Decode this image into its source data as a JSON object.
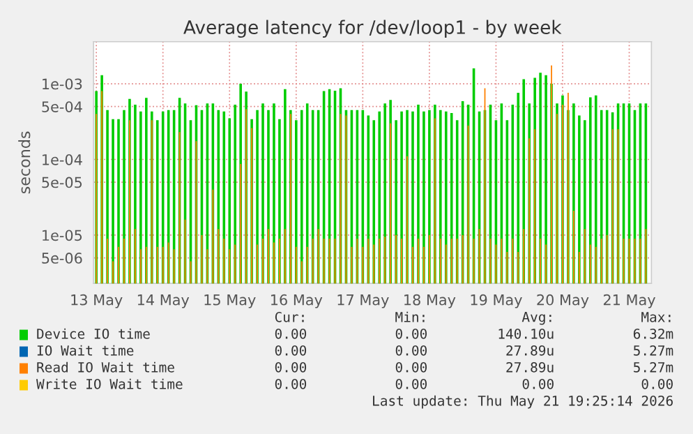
{
  "chart_data": {
    "type": "bar",
    "title": "Average latency for /dev/loop1 - by week",
    "ylabel": "seconds",
    "x": [
      "2026-05-13T00:00",
      "2026-05-13T02:00",
      "2026-05-13T04:00",
      "2026-05-13T06:00",
      "2026-05-13T08:00",
      "2026-05-13T10:00",
      "2026-05-13T12:00",
      "2026-05-13T14:00",
      "2026-05-13T16:00",
      "2026-05-13T18:00",
      "2026-05-13T20:00",
      "2026-05-13T22:00",
      "2026-05-14T00:00",
      "2026-05-14T02:00",
      "2026-05-14T04:00",
      "2026-05-14T06:00",
      "2026-05-14T08:00",
      "2026-05-14T10:00",
      "2026-05-14T12:00",
      "2026-05-14T14:00",
      "2026-05-14T16:00",
      "2026-05-14T18:00",
      "2026-05-14T20:00",
      "2026-05-14T22:00",
      "2026-05-15T00:00",
      "2026-05-15T02:00",
      "2026-05-15T04:00",
      "2026-05-15T06:00",
      "2026-05-15T08:00",
      "2026-05-15T10:00",
      "2026-05-15T12:00",
      "2026-05-15T14:00",
      "2026-05-15T16:00",
      "2026-05-15T18:00",
      "2026-05-15T20:00",
      "2026-05-15T22:00",
      "2026-05-16T00:00",
      "2026-05-16T02:00",
      "2026-05-16T04:00",
      "2026-05-16T06:00",
      "2026-05-16T08:00",
      "2026-05-16T10:00",
      "2026-05-16T12:00",
      "2026-05-16T14:00",
      "2026-05-16T16:00",
      "2026-05-16T18:00",
      "2026-05-16T20:00",
      "2026-05-16T22:00",
      "2026-05-17T00:00",
      "2026-05-17T02:00",
      "2026-05-17T04:00",
      "2026-05-17T06:00",
      "2026-05-17T08:00",
      "2026-05-17T10:00",
      "2026-05-17T12:00",
      "2026-05-17T14:00",
      "2026-05-17T16:00",
      "2026-05-17T18:00",
      "2026-05-17T20:00",
      "2026-05-17T22:00",
      "2026-05-18T00:00",
      "2026-05-18T02:00",
      "2026-05-18T04:00",
      "2026-05-18T06:00",
      "2026-05-18T08:00",
      "2026-05-18T10:00",
      "2026-05-18T12:00",
      "2026-05-18T14:00",
      "2026-05-18T16:00",
      "2026-05-18T18:00",
      "2026-05-18T20:00",
      "2026-05-18T22:00",
      "2026-05-19T00:00",
      "2026-05-19T02:00",
      "2026-05-19T04:00",
      "2026-05-19T06:00",
      "2026-05-19T08:00",
      "2026-05-19T10:00",
      "2026-05-19T12:00",
      "2026-05-19T14:00",
      "2026-05-19T16:00",
      "2026-05-19T18:00",
      "2026-05-19T20:00",
      "2026-05-19T22:00",
      "2026-05-20T00:00",
      "2026-05-20T02:00",
      "2026-05-20T04:00",
      "2026-05-20T06:00",
      "2026-05-20T08:00",
      "2026-05-20T10:00",
      "2026-05-20T12:00",
      "2026-05-20T14:00",
      "2026-05-20T16:00",
      "2026-05-20T18:00",
      "2026-05-20T20:00",
      "2026-05-20T22:00",
      "2026-05-21T00:00",
      "2026-05-21T02:00",
      "2026-05-21T04:00",
      "2026-05-21T06:00"
    ],
    "series": [
      {
        "name": "Device IO time",
        "color": "#00cc00",
        "values": [
          0.0008,
          0.0013,
          0.00045,
          0.00034,
          0.00034,
          0.00045,
          0.00063,
          0.00053,
          0.00043,
          0.00065,
          0.00043,
          0.00033,
          0.00043,
          0.00045,
          0.00045,
          0.00065,
          0.00055,
          0.00033,
          0.00052,
          0.00045,
          0.00055,
          0.00055,
          0.00045,
          0.00043,
          0.00035,
          0.00053,
          0.001,
          0.00079,
          0.00034,
          0.00045,
          0.00055,
          0.00045,
          0.00055,
          0.00034,
          0.00085,
          0.00045,
          0.00033,
          0.00045,
          0.00055,
          0.00045,
          0.00045,
          0.0008,
          0.00085,
          0.00081,
          0.00087,
          0.00045,
          0.00045,
          0.00045,
          0.00045,
          0.00038,
          0.00033,
          0.00043,
          0.00055,
          0.00061,
          0.00033,
          0.00043,
          0.00045,
          0.00043,
          0.00053,
          0.00043,
          0.00045,
          0.00053,
          0.00045,
          0.00043,
          0.00041,
          0.00033,
          0.00059,
          0.00053,
          0.0016,
          0.00043,
          0.00045,
          0.00053,
          0.00033,
          0.00055,
          0.00033,
          0.00053,
          0.00076,
          0.00115,
          0.00055,
          0.0012,
          0.0014,
          0.0013,
          0.001,
          0.00055,
          0.0007,
          0.00045,
          0.00055,
          0.00038,
          0.00033,
          0.00066,
          0.0007,
          0.00045,
          0.00045,
          0.00042,
          0.00055,
          0.00055,
          0.00055,
          0.00045,
          0.00055,
          0.00055
        ]
      },
      {
        "name": "IO Wait time",
        "color": "#0066b3",
        "values": [
          null,
          null,
          null,
          null,
          null,
          null,
          null,
          null,
          null,
          null,
          null,
          null,
          null,
          null,
          null,
          null,
          null,
          null,
          null,
          null,
          null,
          null,
          null,
          null,
          null,
          null,
          null,
          null,
          null,
          null,
          null,
          null,
          null,
          null,
          null,
          null,
          null,
          null,
          null,
          null,
          null,
          null,
          null,
          null,
          null,
          null,
          null,
          null,
          null,
          null,
          null,
          null,
          null,
          null,
          null,
          null,
          null,
          null,
          null,
          null,
          null,
          null,
          null,
          null,
          null,
          null,
          null,
          null,
          null,
          null,
          null,
          null,
          null,
          null,
          null,
          null,
          null,
          null,
          null,
          null,
          null,
          null,
          null,
          null,
          null,
          null,
          null,
          null,
          null,
          null,
          null,
          null,
          null,
          null,
          null,
          null,
          null,
          null,
          null,
          null
        ]
      },
      {
        "name": "Read IO Wait time",
        "color": "#ff8000",
        "values": [
          0.0004,
          0.0008,
          9e-06,
          4.5e-06,
          7e-06,
          9e-06,
          0.00033,
          1.2e-05,
          6.5e-06,
          7e-06,
          0.00033,
          7e-06,
          7e-06,
          8e-06,
          6.5e-06,
          0.00023,
          1.6e-05,
          4.5e-06,
          0.000175,
          1e-05,
          6.5e-06,
          4e-05,
          1.2e-05,
          9e-06,
          6.5e-06,
          7.5e-06,
          8.7e-05,
          0.00046,
          0.00026,
          7.5e-06,
          9e-06,
          1.2e-05,
          8e-06,
          9e-06,
          1.2e-05,
          0.0004,
          7e-06,
          4.5e-06,
          7e-06,
          9e-06,
          1.2e-05,
          9e-06,
          9e-06,
          9e-06,
          0.0004,
          0.00038,
          7e-06,
          9e-06,
          7e-06,
          9e-06,
          7.5e-06,
          9e-06,
          9.5e-06,
          0.0003,
          1e-05,
          9e-06,
          0.00011,
          7e-06,
          9e-06,
          7e-06,
          1e-05,
          0.00035,
          9e-06,
          7.5e-06,
          9e-06,
          9e-06,
          1e-05,
          0.00028,
          9e-06,
          1.2e-05,
          0.00087,
          9e-06,
          7.5e-06,
          9e-06,
          6e-06,
          9e-06,
          6e-06,
          1.2e-05,
          0.00019,
          0.00025,
          9e-06,
          7.5e-06,
          0.00175,
          0.0004,
          0.00053,
          0.00076,
          2.1e-05,
          6e-06,
          1.2e-05,
          7.5e-06,
          7e-06,
          9e-06,
          1e-05,
          0.00025,
          0.00025,
          9e-06,
          9e-06,
          9e-06,
          9e-06,
          1.2e-05
        ]
      },
      {
        "name": "Write IO Wait time",
        "color": "#ffcc00",
        "values": [
          null,
          null,
          null,
          null,
          null,
          null,
          null,
          null,
          null,
          null,
          null,
          null,
          null,
          null,
          null,
          null,
          null,
          null,
          null,
          null,
          null,
          null,
          null,
          null,
          null,
          null,
          null,
          null,
          null,
          null,
          null,
          null,
          null,
          null,
          null,
          null,
          null,
          null,
          null,
          null,
          null,
          null,
          null,
          null,
          null,
          null,
          null,
          null,
          null,
          null,
          null,
          null,
          null,
          null,
          null,
          null,
          null,
          null,
          null,
          null,
          null,
          null,
          null,
          null,
          null,
          null,
          null,
          null,
          null,
          null,
          null,
          null,
          null,
          null,
          null,
          null,
          null,
          null,
          null,
          null,
          null,
          null,
          null,
          null,
          null,
          null,
          null,
          null,
          null,
          null,
          null,
          null,
          null,
          null,
          null,
          null,
          null,
          null,
          null,
          null
        ]
      }
    ],
    "log": "y",
    "ylim": [
      2.3e-06,
      0.0036
    ],
    "yticks": [
      {
        "value": 0.001,
        "label": "1e-03"
      },
      {
        "value": 0.0005,
        "label": "5e-04"
      },
      {
        "value": 0.0001,
        "label": "1e-04"
      },
      {
        "value": 5e-05,
        "label": "5e-05"
      },
      {
        "value": 1e-05,
        "label": "1e-05"
      },
      {
        "value": 5e-06,
        "label": "5e-06"
      }
    ],
    "xlim": [
      "2026-05-12T23:00",
      "2026-05-21T08:00"
    ],
    "xticks": [
      {
        "value": "2026-05-13",
        "label": "13 May"
      },
      {
        "value": "2026-05-14",
        "label": "14 May"
      },
      {
        "value": "2026-05-15",
        "label": "15 May"
      },
      {
        "value": "2026-05-16",
        "label": "16 May"
      },
      {
        "value": "2026-05-17",
        "label": "17 May"
      },
      {
        "value": "2026-05-18",
        "label": "18 May"
      },
      {
        "value": "2026-05-19",
        "label": "19 May"
      },
      {
        "value": "2026-05-20",
        "label": "20 May"
      },
      {
        "value": "2026-05-21",
        "label": "21 May"
      }
    ],
    "grid": true,
    "legend": "bottom",
    "annotations": [
      "Cur:",
      "Min:",
      "Avg:",
      "Max:",
      "0.00",
      "0.00",
      "140.10u",
      "6.32m",
      "0.00",
      "0.00",
      "27.89u",
      "5.27m",
      "0.00",
      "0.00",
      "27.89u",
      "5.27m",
      "0.00",
      "0.00",
      "0.00",
      "0.00",
      "Last update: Thu May 21 19:25:14 2026"
    ]
  }
}
